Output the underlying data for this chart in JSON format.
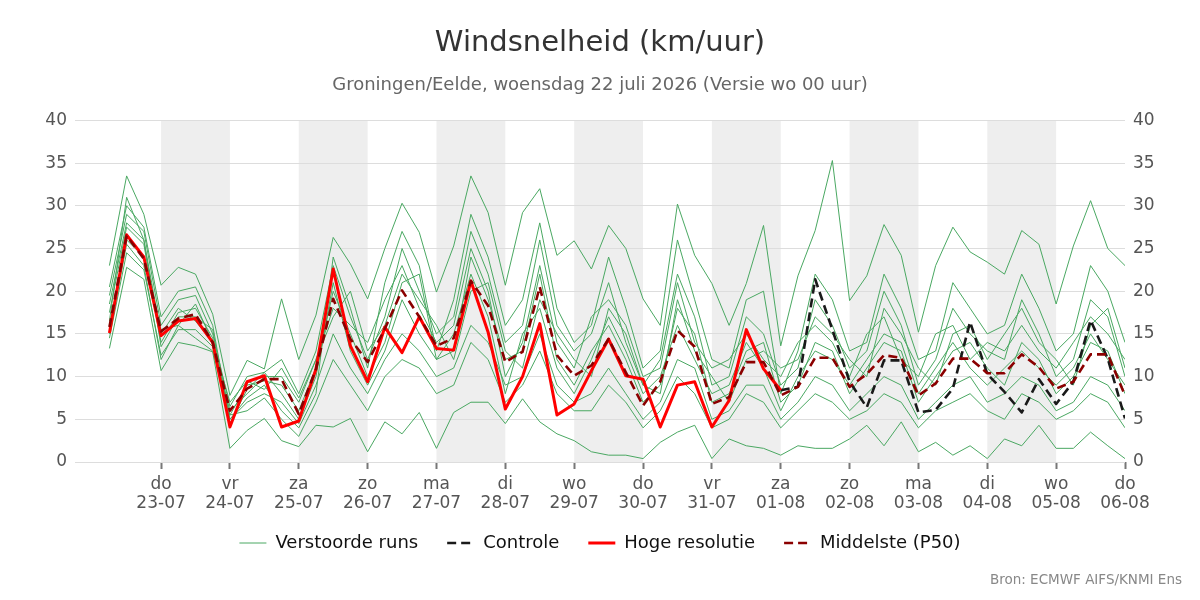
{
  "chart_data": {
    "type": "line",
    "title": "Windsnelheid (km/uur)",
    "subtitle": "Groningen/Eelde, woensdag 22 juli 2026 (Versie wo 00 uur)",
    "x": [
      "2026-07-22T06:00",
      "2026-07-22T12:00",
      "2026-07-22T18:00",
      "2026-07-23T00:00",
      "2026-07-23T06:00",
      "2026-07-23T12:00",
      "2026-07-23T18:00",
      "2026-07-24T00:00",
      "2026-07-24T06:00",
      "2026-07-24T12:00",
      "2026-07-24T18:00",
      "2026-07-25T00:00",
      "2026-07-25T06:00",
      "2026-07-25T12:00",
      "2026-07-25T18:00",
      "2026-07-26T00:00",
      "2026-07-26T06:00",
      "2026-07-26T12:00",
      "2026-07-26T18:00",
      "2026-07-27T00:00",
      "2026-07-27T06:00",
      "2026-07-27T12:00",
      "2026-07-27T18:00",
      "2026-07-28T00:00",
      "2026-07-28T06:00",
      "2026-07-28T12:00",
      "2026-07-28T18:00",
      "2026-07-29T00:00",
      "2026-07-29T06:00",
      "2026-07-29T12:00",
      "2026-07-29T18:00",
      "2026-07-30T00:00",
      "2026-07-30T06:00",
      "2026-07-30T12:00",
      "2026-07-30T18:00",
      "2026-07-31T00:00",
      "2026-07-31T06:00",
      "2026-07-31T12:00",
      "2026-07-31T18:00",
      "2026-08-01T00:00",
      "2026-08-01T06:00",
      "2026-08-01T12:00",
      "2026-08-01T18:00",
      "2026-08-02T00:00",
      "2026-08-02T06:00",
      "2026-08-02T12:00",
      "2026-08-02T18:00",
      "2026-08-03T00:00",
      "2026-08-03T06:00",
      "2026-08-03T12:00",
      "2026-08-03T18:00",
      "2026-08-04T00:00",
      "2026-08-04T06:00",
      "2026-08-04T12:00",
      "2026-08-04T18:00",
      "2026-08-05T00:00",
      "2026-08-05T06:00",
      "2026-08-05T12:00",
      "2026-08-05T18:00",
      "2026-08-06T00:00"
    ],
    "series": [
      {
        "name": "Verstoorde runs",
        "color": "#4aa862",
        "values": [
          19.5,
          29,
          27,
          16,
          19,
          19.5,
          15,
          6.5,
          10,
          10.5,
          12,
          8,
          13,
          23,
          17,
          12,
          17,
          25,
          20,
          15,
          17,
          27,
          22,
          14,
          16,
          26,
          16,
          13,
          15,
          21,
          14,
          9,
          12,
          22,
          17,
          9,
          10,
          17,
          15,
          9,
          11,
          19,
          16,
          11,
          13,
          20,
          16,
          9,
          12,
          18,
          15,
          13,
          12,
          19,
          15,
          10,
          12,
          19,
          17,
          10
        ]
      },
      {
        "color": "#4aa862",
        "values": [
          14.5,
          24.5,
          22.5,
          12.5,
          15.5,
          15.5,
          13.5,
          5,
          7,
          8,
          7,
          4.5,
          9,
          15,
          11,
          8,
          12,
          15,
          13,
          10,
          11,
          16,
          14,
          9,
          10,
          15,
          9,
          7,
          8,
          11,
          8,
          5,
          7,
          12,
          11,
          5,
          6,
          9,
          9,
          5,
          7,
          10,
          9,
          6,
          8,
          10,
          9,
          5,
          7,
          9,
          10,
          7,
          8,
          10,
          9,
          6,
          7,
          10,
          9,
          6
        ]
      },
      {
        "color": "#4aa862",
        "values": [
          17.5,
          27.5,
          25.5,
          14,
          17.5,
          18,
          14.5,
          5.5,
          9,
          9.5,
          9,
          6,
          11,
          20,
          15,
          10,
          14,
          21,
          22,
          12,
          13,
          24,
          19,
          12,
          13,
          22,
          12,
          9,
          13,
          16,
          12,
          7,
          9,
          18,
          15,
          7,
          8,
          13,
          14,
          7,
          9,
          14,
          13,
          8,
          11,
          14,
          13,
          7,
          10,
          13,
          14,
          11,
          9,
          14,
          12,
          8,
          10,
          14,
          13,
          8
        ]
      },
      {
        "color": "#4aa862",
        "values": [
          16.5,
          31,
          26,
          15,
          18,
          16.5,
          14,
          6,
          8,
          10,
          10,
          7,
          12,
          18,
          16,
          14,
          19,
          23,
          18,
          14,
          16,
          25,
          20,
          10,
          14,
          23,
          14,
          11,
          17,
          19,
          16,
          10,
          11,
          21,
          14,
          11,
          12,
          15,
          12,
          10,
          14,
          16,
          14,
          10,
          15,
          17,
          12,
          10,
          15,
          16,
          12,
          14,
          13,
          16,
          13,
          11,
          14,
          17,
          15,
          12
        ]
      },
      {
        "color": "#4aa862",
        "values": [
          18.5,
          28,
          26,
          13.5,
          17,
          17,
          15.5,
          4.5,
          8.5,
          10.5,
          8,
          5,
          10,
          21,
          13,
          9,
          13,
          19,
          15,
          12,
          15,
          22,
          17,
          8,
          15,
          18,
          11,
          8,
          12,
          17,
          13,
          8,
          10,
          16,
          12,
          8,
          9,
          14,
          11,
          6,
          10,
          13,
          12,
          9,
          12,
          15,
          14,
          8,
          11,
          14,
          11,
          9,
          11,
          13,
          11,
          9,
          11,
          15,
          12,
          9
        ]
      },
      {
        "color": "#4aa862",
        "values": [
          16,
          26,
          24,
          15.5,
          16,
          18.5,
          14,
          7,
          9.5,
          8.5,
          11,
          7.5,
          12,
          17,
          20,
          13,
          16,
          22,
          19,
          16,
          12,
          20,
          21,
          13,
          11,
          19,
          15,
          12,
          10,
          18,
          15,
          9,
          8,
          19,
          13,
          10,
          7,
          12,
          13,
          11,
          12,
          17,
          15,
          12,
          10,
          18,
          15,
          11,
          9,
          15,
          16,
          12,
          15,
          18,
          14,
          12,
          9,
          16,
          18,
          11
        ]
      },
      {
        "color": "#4aa862",
        "values": [
          20.5,
          30,
          27.5,
          17,
          20,
          20.5,
          16,
          5,
          7.5,
          9,
          6,
          4,
          8,
          24,
          18,
          11,
          21,
          27,
          23,
          13,
          19,
          29,
          24,
          16,
          19,
          28,
          18,
          14,
          16,
          24,
          18,
          11,
          13,
          26,
          19,
          12,
          11,
          19,
          20,
          8,
          13,
          22,
          19,
          13,
          14,
          22,
          18,
          12,
          13,
          21,
          18,
          15,
          16,
          22,
          18,
          13,
          15,
          23,
          20,
          14
        ]
      },
      {
        "color": "#4aa862",
        "values": [
          15,
          25.5,
          23,
          12,
          16,
          14.5,
          13,
          5.5,
          6,
          7.5,
          5,
          3,
          7,
          12,
          9,
          6,
          10,
          12,
          11,
          8,
          9,
          14,
          12,
          7,
          9,
          13,
          8,
          6,
          6,
          9,
          7,
          4,
          6,
          10,
          8,
          4,
          5,
          8,
          7,
          4,
          6,
          8,
          7,
          5,
          6,
          8,
          7,
          4,
          6,
          7,
          8,
          6,
          5,
          8,
          7,
          5,
          6,
          8,
          7,
          4
        ]
      },
      {
        "color": "#4aa862",
        "values": [
          23.0,
          33.5,
          29.0,
          20.7,
          22.8,
          22.0,
          17.3,
          7.8,
          11.9,
          10.9,
          19.1,
          12.0,
          17.2,
          26.3,
          23.2,
          19.1,
          25.0,
          30.3,
          26.9,
          19.9,
          25.3,
          33.5,
          29.2,
          20.7,
          29.2,
          32.0,
          24.2,
          25.9,
          22.6,
          27.7,
          25.0,
          19.1,
          16.0,
          30.2,
          24.2,
          20.9,
          16.0,
          20.9,
          27.7,
          13.6,
          21.8,
          27.1,
          35.3,
          18.9,
          21.8,
          27.8,
          24.2,
          15.2,
          23.0,
          27.5,
          24.6,
          23.4,
          22.0,
          27.1,
          25.5,
          18.5,
          25.3,
          30.6,
          25.0,
          23.0
        ]
      },
      {
        "color": "#4aa862",
        "values": [
          13.3,
          22.8,
          21.4,
          10.7,
          14.0,
          13.6,
          12.9,
          1.6,
          3.7,
          5.1,
          2.5,
          1.8,
          4.3,
          4.1,
          5.1,
          1.2,
          4.7,
          3.3,
          5.8,
          1.6,
          5.8,
          7.0,
          7.0,
          4.5,
          7.4,
          4.7,
          3.3,
          2.5,
          1.2,
          0.8,
          0.8,
          0.4,
          2.3,
          3.5,
          4.3,
          0.4,
          2.7,
          1.9,
          1.6,
          0.8,
          1.9,
          1.6,
          1.6,
          2.7,
          4.3,
          1.9,
          4.7,
          1.2,
          2.3,
          0.8,
          1.9,
          0.4,
          2.7,
          1.9,
          4.3,
          1.6,
          1.6,
          3.5,
          1.9,
          0.4
        ]
      },
      {
        "name": "Controle",
        "color": "#1a1a1a",
        "line_style": "dashed",
        "values": [
          null,
          null,
          null,
          null,
          null,
          null,
          null,
          null,
          null,
          null,
          null,
          null,
          null,
          null,
          null,
          null,
          null,
          null,
          null,
          null,
          null,
          null,
          null,
          null,
          null,
          null,
          null,
          null,
          null,
          null,
          null,
          null,
          null,
          null,
          null,
          null,
          null,
          null,
          null,
          8.4,
          8.8,
          21.4,
          15.5,
          9.4,
          6.4,
          11.9,
          11.9,
          5.8,
          6.1,
          8.6,
          16.4,
          10.3,
          8.2,
          5.8,
          9.7,
          6.8,
          9.4,
          16.6,
          12.1,
          5.1
        ]
      },
      {
        "name": "Hoge resolutie",
        "color": "#ff0000",
        "values": [
          15.1,
          26.6,
          24.0,
          14.8,
          16.5,
          16.8,
          14.0,
          4.1,
          9.4,
          10.1,
          4.1,
          4.8,
          10.9,
          22.6,
          13.6,
          9.4,
          15.8,
          12.8,
          17.0,
          13.3,
          13.1,
          21.2,
          15.2,
          6.2,
          10.0,
          16.2,
          5.5,
          6.8,
          10.7,
          14.4,
          10.1,
          9.7,
          4.1,
          9.0,
          9.4,
          4.1,
          7.2,
          15.5,
          10.9,
          8.4,
          null,
          null,
          null,
          null,
          null,
          null,
          null,
          null,
          null,
          null,
          null,
          null,
          null,
          null,
          null,
          null,
          null,
          null,
          null,
          null
        ]
      },
      {
        "name": "Middelste (P50)",
        "color": "#8b0000",
        "line_style": "dashed",
        "values": [
          15.8,
          26.5,
          23.8,
          15.3,
          16.8,
          17.3,
          14.0,
          6.0,
          8.6,
          9.7,
          9.7,
          5.6,
          10.9,
          19.1,
          14.4,
          11.7,
          15.6,
          20.1,
          17.0,
          13.6,
          14.5,
          21.2,
          18.3,
          11.7,
          12.9,
          20.5,
          12.5,
          10.1,
          11.3,
          14.4,
          10.5,
          6.6,
          9.4,
          15.4,
          13.5,
          6.8,
          7.6,
          11.7,
          11.7,
          7.8,
          8.8,
          12.2,
          12.2,
          8.8,
          10.3,
          12.5,
          12.2,
          7.8,
          9.2,
          12.1,
          12.1,
          10.4,
          10.4,
          12.6,
          11.1,
          8.6,
          9.4,
          12.6,
          12.6,
          7.8
        ]
      }
    ],
    "xlim": [
      "2026-07-21T18:00",
      "2026-08-06T00:00"
    ],
    "xticks": [
      {
        "value": "2026-07-23",
        "label": "do\n23-07"
      },
      {
        "value": "2026-07-24",
        "label": "vr\n24-07"
      },
      {
        "value": "2026-07-25",
        "label": "za\n25-07"
      },
      {
        "value": "2026-07-26",
        "label": "zo\n26-07"
      },
      {
        "value": "2026-07-27",
        "label": "ma\n27-07"
      },
      {
        "value": "2026-07-28",
        "label": "di\n28-07"
      },
      {
        "value": "2026-07-29",
        "label": "wo\n29-07"
      },
      {
        "value": "2026-07-30",
        "label": "do\n30-07"
      },
      {
        "value": "2026-07-31",
        "label": "vr\n31-07"
      },
      {
        "value": "2026-08-01",
        "label": "za\n01-08"
      },
      {
        "value": "2026-08-02",
        "label": "zo\n02-08"
      },
      {
        "value": "2026-08-03",
        "label": "ma\n03-08"
      },
      {
        "value": "2026-08-04",
        "label": "di\n04-08"
      },
      {
        "value": "2026-08-05",
        "label": "wo\n05-08"
      },
      {
        "value": "2026-08-06",
        "label": "do\n06-08"
      }
    ],
    "ylim": [
      0,
      40
    ],
    "yticks": [
      0,
      5,
      10,
      15,
      20,
      25,
      30,
      35,
      40
    ],
    "y2lim": [
      0,
      40
    ],
    "y2ticks": [
      0,
      5,
      10,
      15,
      20,
      25,
      30,
      35,
      40
    ],
    "bands": [
      {
        "axis": "x",
        "from": "2026-07-23",
        "to": "2026-07-24",
        "color": "#eeeeee"
      },
      {
        "axis": "x",
        "from": "2026-07-25",
        "to": "2026-07-26",
        "color": "#eeeeee"
      },
      {
        "axis": "x",
        "from": "2026-07-27",
        "to": "2026-07-28",
        "color": "#eeeeee"
      },
      {
        "axis": "x",
        "from": "2026-07-29",
        "to": "2026-07-30",
        "color": "#eeeeee"
      },
      {
        "axis": "x",
        "from": "2026-07-31",
        "to": "2026-08-01",
        "color": "#eeeeee"
      },
      {
        "axis": "x",
        "from": "2026-08-02",
        "to": "2026-08-03",
        "color": "#eeeeee"
      },
      {
        "axis": "x",
        "from": "2026-08-04",
        "to": "2026-08-05",
        "color": "#eeeeee"
      }
    ],
    "grid": "y",
    "legend": "bottom",
    "annotations": [
      "Bron: ECMWF AIFS/KNMI Ens"
    ]
  }
}
